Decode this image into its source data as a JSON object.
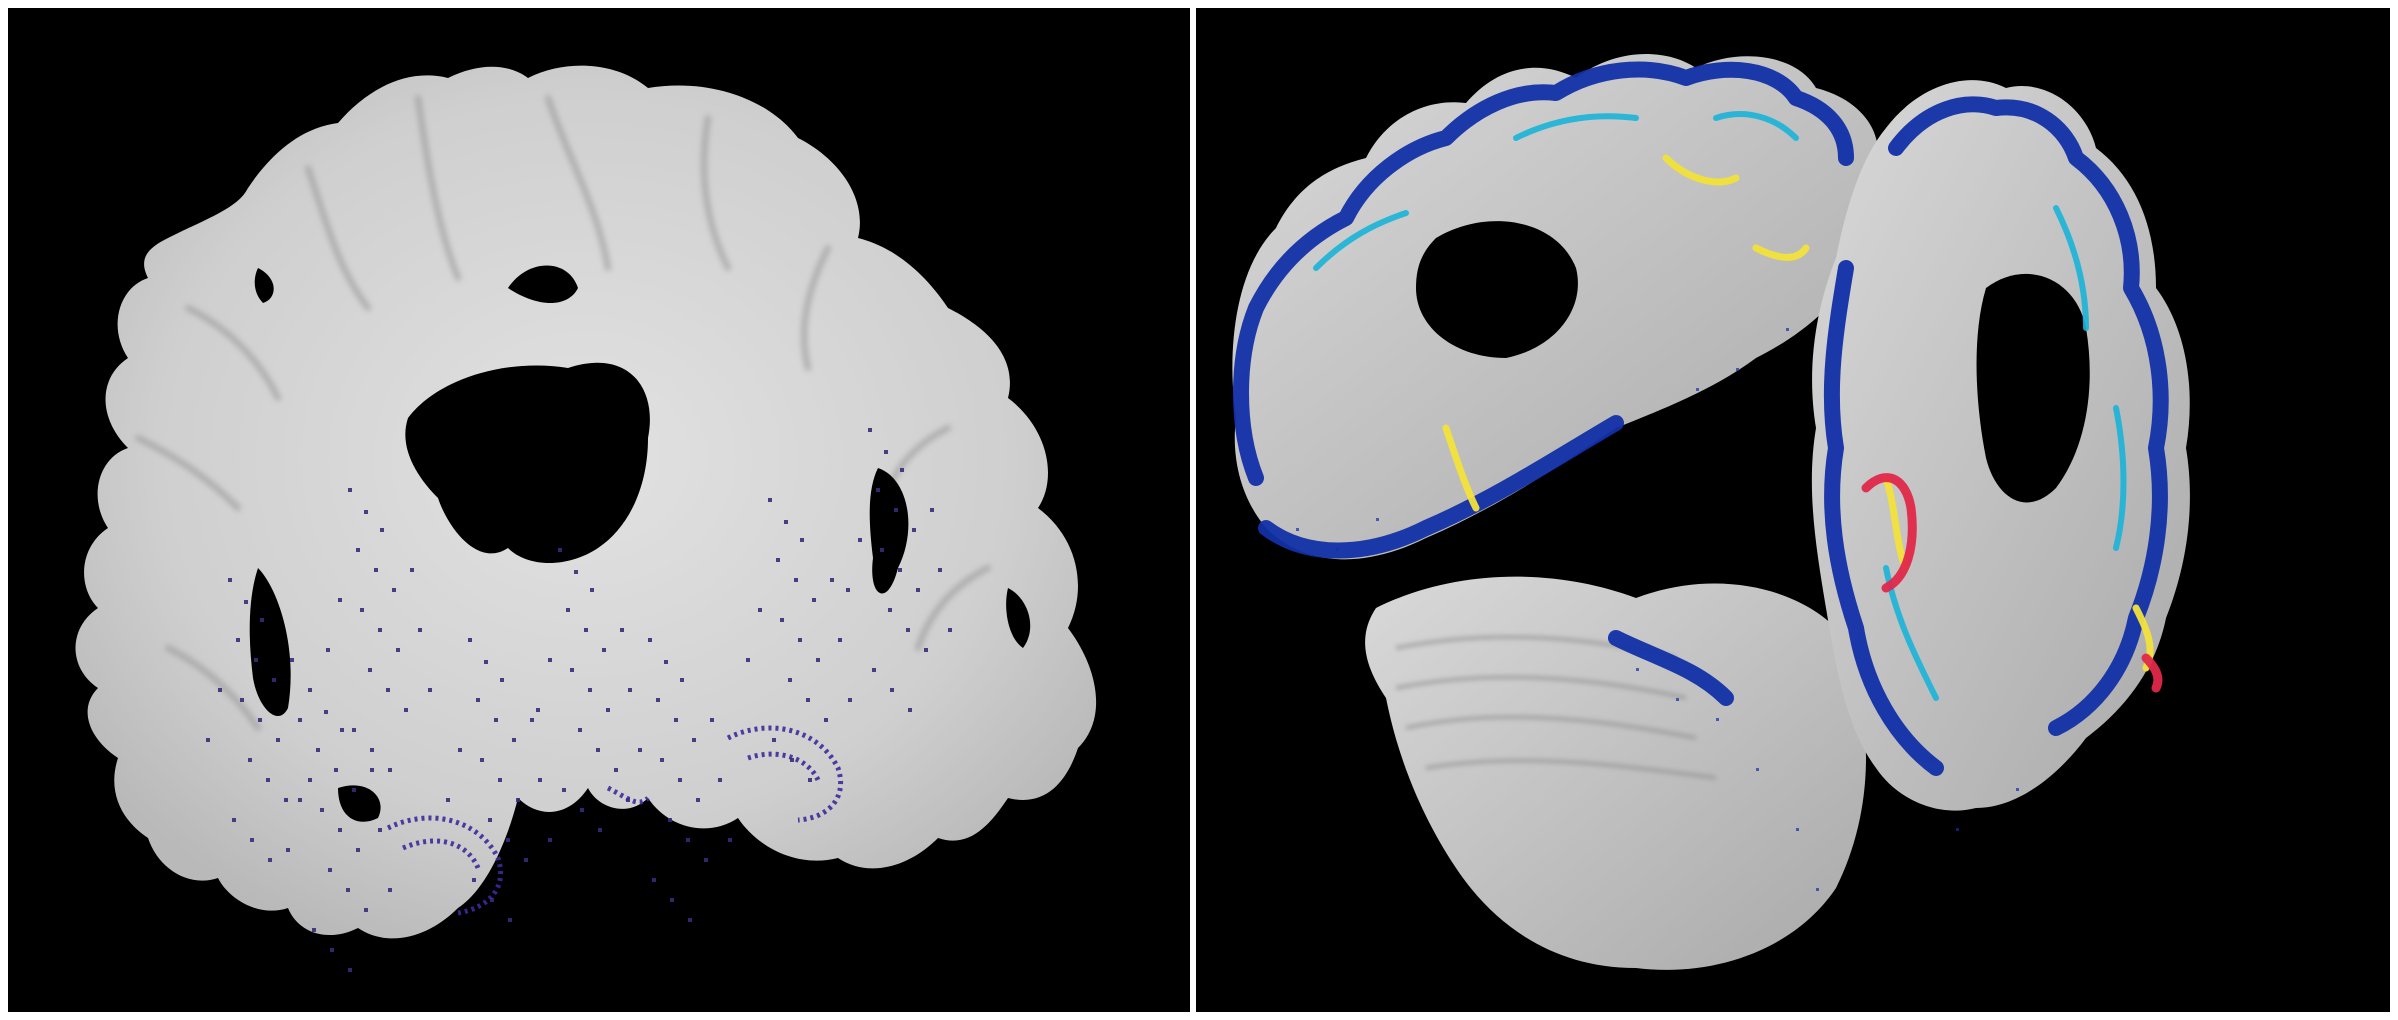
{
  "figure": {
    "panels": [
      {
        "name": "coronal-brain-slice",
        "view": "coronal",
        "overlay": "sparse-dots"
      },
      {
        "name": "3d-brain-rendering",
        "view": "3d-oblique",
        "overlay": "cortical-heatmap"
      }
    ],
    "colors": {
      "background": "#000000",
      "tissue": "#d6d6d6",
      "tissue_shadow": "#9a9a9a",
      "heat_low": "#1230a8",
      "heat_mid": "#19b4d8",
      "heat_high": "#f2e23a",
      "heat_peak": "#e0284a",
      "dot": "#3a2b7a"
    }
  }
}
